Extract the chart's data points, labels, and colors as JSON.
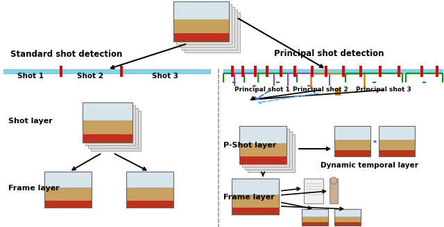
{
  "bg_color": "#ffffff",
  "left_title": "Standard shot detection",
  "right_title": "Principal shot detection",
  "shot_labels_left": [
    "Shot 1",
    "Shot 2",
    "Shot 3"
  ],
  "shot_labels_right": [
    "Principal shot 1",
    "Principal shot 2",
    "Principal shot 3"
  ],
  "layer_label_shot": "Shot layer",
  "layer_label_frame": "Frame layer",
  "layer_label_pshot": "P-Shot layer",
  "layer_label_dynamic": "Dynamic temporal layer",
  "layer_label_frame_right": "Frame layer",
  "cyan_bar_color": "#80d4e8",
  "cyan_bar_dark": "#60b8cc",
  "red_marker_color": "#dd0000",
  "green_bracket_color": "#009900",
  "purple_bracket_color": "#9944bb",
  "orange_bracket_color": "#cc8800",
  "dashed_blue_color": "#3366ff",
  "dashed_cyan_color": "#66bbff",
  "arrow_color": "#000000",
  "divider_color": "#888888",
  "img_wall_color": "#b8c8d8",
  "img_floor_color": "#c8a878",
  "img_people_color": "#d04030",
  "img_teacher_color": "#d4b878",
  "img_bg_dark": "#7090a8",
  "img_shadow": "#cccccc",
  "img_border": "#666666"
}
